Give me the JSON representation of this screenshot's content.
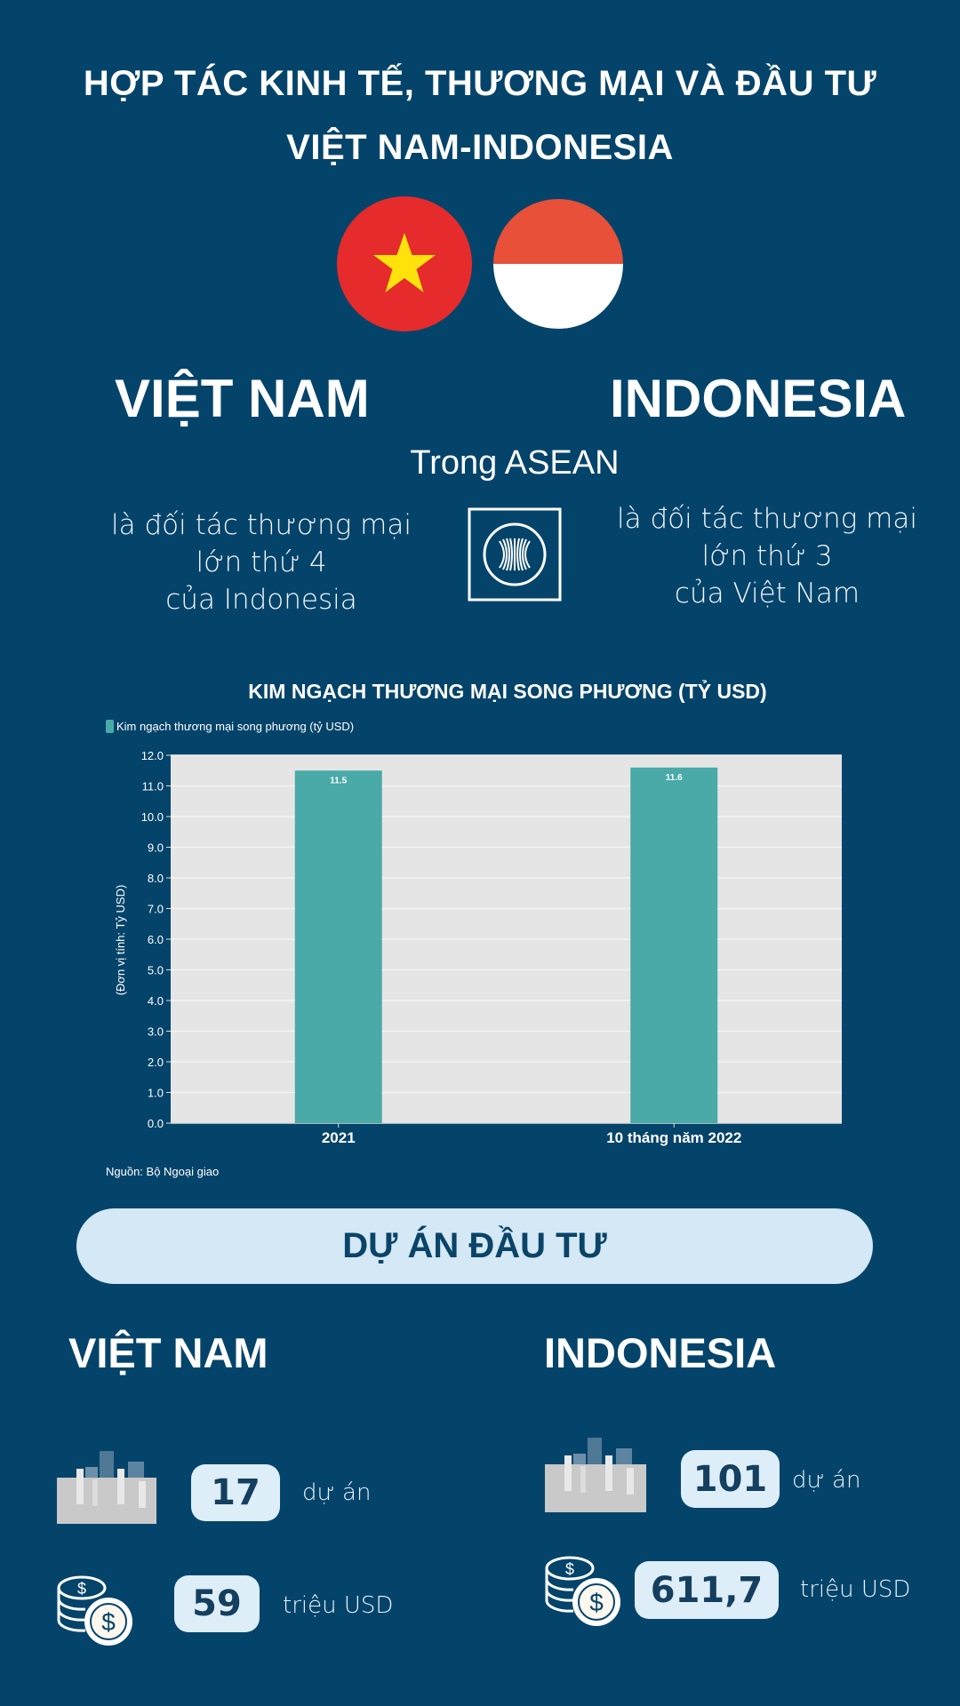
{
  "header": {
    "title_line1": "HỢP TÁC KINH TẾ, THƯƠNG MẠI VÀ ĐẦU  TƯ",
    "title_line2": "VIỆT NAM-INDONESIA"
  },
  "flags": {
    "vietnam": {
      "colors": {
        "red": "#e52b2b",
        "star": "#fde20b"
      }
    },
    "indonesia": {
      "colors": {
        "red": "#e8503a",
        "white": "#ffffff"
      }
    }
  },
  "countries": {
    "left": "VIỆT NAM",
    "right": "INDONESIA"
  },
  "asean": {
    "heading": "Trong ASEAN",
    "left_lines": [
      "là đối tác thương mại",
      "lớn thứ 4",
      "của Indonesia"
    ],
    "right_lines": [
      "là đối tác thương mại",
      "lớn thứ 3",
      "của Việt Nam"
    ],
    "icon": "asean-logo-icon"
  },
  "chart_data": {
    "type": "bar",
    "title": "KIM NGẠCH THƯƠNG MẠI SONG PHƯƠNG (TỶ USD)",
    "categories": [
      "2021",
      "10 tháng năm 2022"
    ],
    "series": [
      {
        "name": "Kim ngạch thương mại song phương (tỷ USD)",
        "values": [
          11.5,
          11.6
        ],
        "color": "#4aaaa8"
      }
    ],
    "data_labels": [
      "11.5",
      "11.6"
    ],
    "ylabel": "(Đơn vị tính: Tỷ USD)",
    "xlabel": "",
    "ylim": [
      0,
      12
    ],
    "yticks": [
      "0.0",
      "1.0",
      "2.0",
      "3.0",
      "4.0",
      "5.0",
      "6.0",
      "7.0",
      "8.0",
      "9.0",
      "10.0",
      "11.0",
      "12.0"
    ],
    "grid": true,
    "legend": "top-left",
    "plot_background": "#e5e5e5",
    "source": "Nguồn: Bộ Ngoại giao"
  },
  "investment": {
    "heading": "DỰ ÁN ĐẦU TƯ",
    "vietnam": {
      "label": "VIỆT NAM",
      "projects": "17",
      "projects_unit": "dự án",
      "capital": "59",
      "capital_unit": "triệu USD"
    },
    "indonesia": {
      "label": "INDONESIA",
      "projects": "101",
      "projects_unit": "dự án",
      "capital": "611,7",
      "capital_unit": "triệu USD"
    }
  }
}
